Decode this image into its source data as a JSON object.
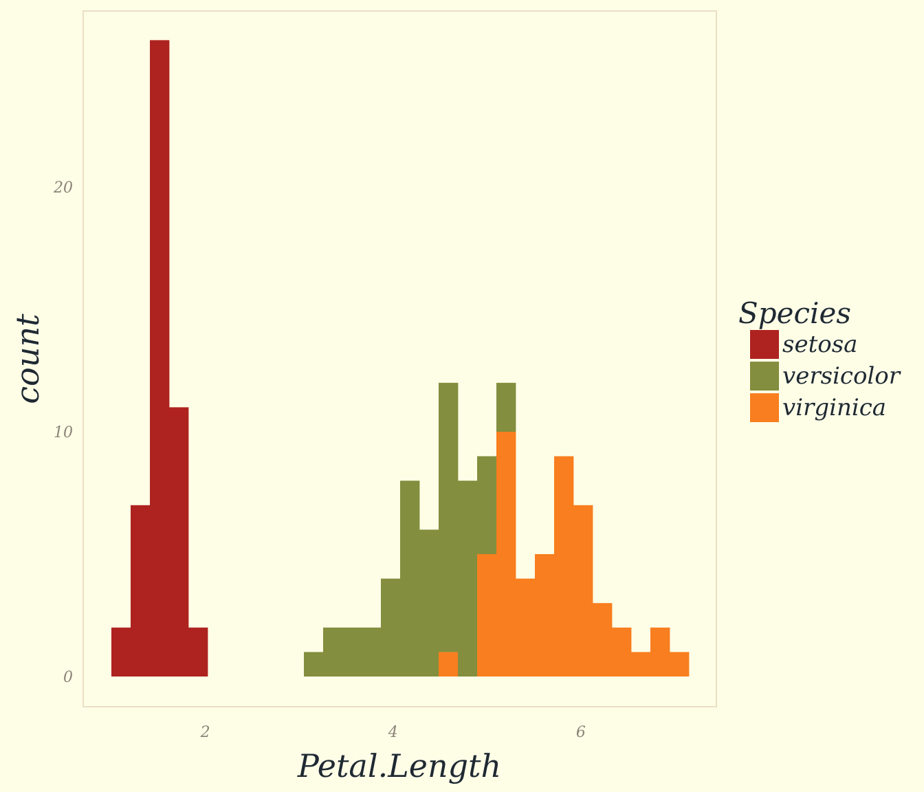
{
  "chart_data": {
    "type": "bar",
    "subtype": "stacked histogram",
    "xlabel": "Petal.Length",
    "ylabel": "count",
    "xlim": [
      0.85,
      7.15
    ],
    "ylim": [
      0,
      27.25
    ],
    "x_ticks": [
      2,
      4,
      6
    ],
    "y_ticks": [
      0,
      10,
      20
    ],
    "bin_width": 0.205,
    "bin_starts": [
      1.0,
      1.205,
      1.41,
      1.615,
      1.82,
      2.025,
      2.23,
      2.435,
      2.64,
      2.845,
      3.05,
      3.255,
      3.46,
      3.665,
      3.87,
      4.075,
      4.28,
      4.485,
      4.69,
      4.895,
      5.1,
      5.305,
      5.51,
      5.715,
      5.92,
      6.125,
      6.33,
      6.535,
      6.74,
      6.945
    ],
    "series": [
      {
        "name": "setosa",
        "color": "#ae2320",
        "values": [
          2,
          7,
          26,
          11,
          2,
          0,
          0,
          0,
          0,
          0,
          0,
          0,
          0,
          0,
          0,
          0,
          0,
          0,
          0,
          0,
          0,
          0,
          0,
          0,
          0,
          0,
          0,
          0,
          0,
          0
        ]
      },
      {
        "name": "versicolor",
        "color": "#838e3e",
        "values": [
          0,
          0,
          0,
          0,
          0,
          0,
          0,
          0,
          0,
          0,
          1,
          2,
          2,
          2,
          4,
          8,
          6,
          11,
          8,
          4,
          2,
          0,
          0,
          0,
          0,
          0,
          0,
          0,
          0,
          0
        ]
      },
      {
        "name": "virginica",
        "color": "#f87e1f",
        "values": [
          0,
          0,
          0,
          0,
          0,
          0,
          0,
          0,
          0,
          0,
          0,
          0,
          0,
          0,
          0,
          0,
          0,
          1,
          0,
          5,
          10,
          4,
          5,
          9,
          7,
          3,
          2,
          1,
          2,
          1
        ]
      }
    ],
    "legend": {
      "title": "Species",
      "position": "right"
    },
    "grid": false
  }
}
